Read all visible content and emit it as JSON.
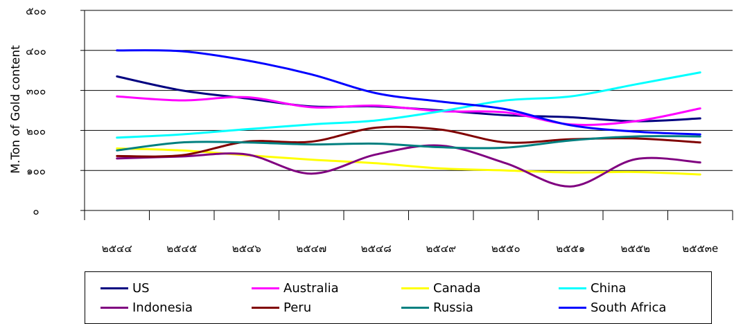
{
  "chart_data": {
    "type": "line",
    "ylabel": "M.Ton of Gold content",
    "xlabel": "",
    "ylim": [
      0,
      500
    ],
    "yticks": [
      0,
      100,
      200,
      300,
      400,
      500
    ],
    "ytick_labels": [
      "๐",
      "๑๐๐",
      "๒๐๐",
      "๓๐๐",
      "๔๐๐",
      "๕๐๐"
    ],
    "categories": [
      "๒๕๔๔",
      "๒๕๔๕",
      "๒๕๔๖",
      "๒๕๔๗",
      "๒๕๔๘",
      "๒๕๔๙",
      "๒๕๕๐",
      "๒๕๕๑",
      "๒๕๕๒",
      "๒๕๕๓e"
    ],
    "grid": "horizontal",
    "legend_position": "bottom",
    "series": [
      {
        "name": "US",
        "color": "#000080",
        "values": [
          335,
          300,
          280,
          260,
          260,
          250,
          238,
          233,
          223,
          230
        ]
      },
      {
        "name": "Australia",
        "color": "#ff00ff",
        "values": [
          285,
          275,
          283,
          258,
          262,
          248,
          245,
          215,
          223,
          255
        ]
      },
      {
        "name": "Canada",
        "color": "#ffff00",
        "values": [
          155,
          150,
          138,
          127,
          118,
          105,
          100,
          95,
          96,
          90
        ]
      },
      {
        "name": "China",
        "color": "#00ffff",
        "values": [
          182,
          190,
          203,
          215,
          225,
          248,
          275,
          285,
          315,
          345
        ]
      },
      {
        "name": "Indonesia",
        "color": "#800080",
        "values": [
          130,
          135,
          140,
          92,
          140,
          162,
          118,
          60,
          128,
          120
        ]
      },
      {
        "name": "Peru",
        "color": "#800000",
        "values": [
          136,
          138,
          172,
          172,
          207,
          202,
          170,
          178,
          180,
          170
        ]
      },
      {
        "name": "Russia",
        "color": "#008080",
        "values": [
          150,
          170,
          170,
          165,
          167,
          158,
          157,
          175,
          185,
          185
        ]
      },
      {
        "name": "South Africa",
        "color": "#0000ff",
        "values": [
          400,
          398,
          375,
          340,
          293,
          272,
          253,
          213,
          197,
          190
        ]
      }
    ]
  }
}
